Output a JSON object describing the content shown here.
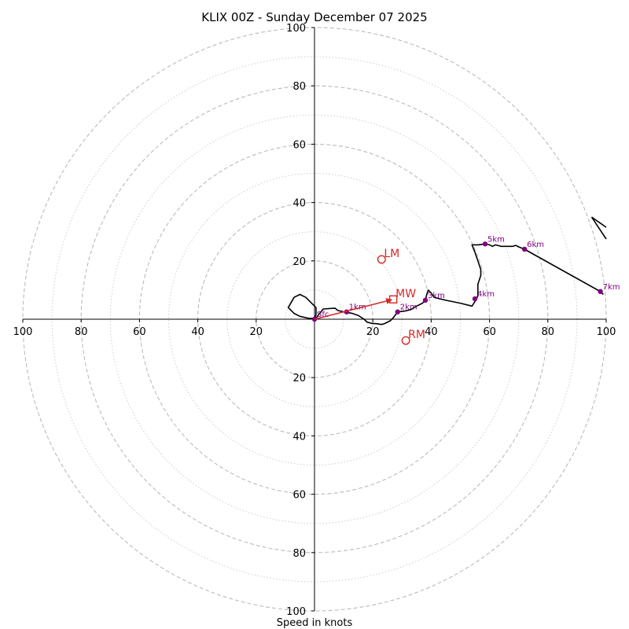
{
  "chart_data": {
    "type": "hodograph",
    "title": "KLIX 00Z - Sunday December 07 2025",
    "xlabel": "Speed in knots",
    "xlim": [
      -100,
      100
    ],
    "ylim": [
      -100,
      100
    ],
    "ring_major_step": 20,
    "ring_minor_step": 10,
    "x_ticks": [
      {
        "value": -100,
        "label": "100"
      },
      {
        "value": -80,
        "label": "80"
      },
      {
        "value": -60,
        "label": "60"
      },
      {
        "value": -40,
        "label": "40"
      },
      {
        "value": -20,
        "label": "20"
      },
      {
        "value": 20,
        "label": "20"
      },
      {
        "value": 40,
        "label": "40"
      },
      {
        "value": 60,
        "label": "60"
      },
      {
        "value": 80,
        "label": "80"
      },
      {
        "value": 100,
        "label": "100"
      }
    ],
    "y_ticks": [
      {
        "value": 100,
        "label": "100"
      },
      {
        "value": 80,
        "label": "80"
      },
      {
        "value": 60,
        "label": "60"
      },
      {
        "value": 40,
        "label": "40"
      },
      {
        "value": 20,
        "label": "20"
      },
      {
        "value": -20,
        "label": "20"
      },
      {
        "value": -40,
        "label": "40"
      },
      {
        "value": -60,
        "label": "60"
      },
      {
        "value": -80,
        "label": "80"
      },
      {
        "value": -100,
        "label": "100"
      }
    ],
    "trace": [
      [
        0,
        0
      ],
      [
        0.5,
        1.5
      ],
      [
        0.5,
        4
      ],
      [
        -1,
        5.5
      ],
      [
        -3,
        7.5
      ],
      [
        -5,
        8.5
      ],
      [
        -7,
        7.5
      ],
      [
        -9,
        4
      ],
      [
        -7,
        2
      ],
      [
        -5,
        1
      ],
      [
        -2,
        0.3
      ],
      [
        0.5,
        0.3
      ],
      [
        1,
        1
      ],
      [
        3,
        3.5
      ],
      [
        7,
        3.8
      ],
      [
        8,
        3
      ],
      [
        10,
        2.5
      ],
      [
        13,
        2
      ],
      [
        15,
        1.3
      ],
      [
        17,
        0
      ],
      [
        18,
        -1
      ],
      [
        20,
        -1.5
      ],
      [
        21,
        -1.5
      ],
      [
        23,
        -1.8
      ],
      [
        24,
        -1.5
      ],
      [
        26,
        -0.5
      ],
      [
        27,
        0.5
      ],
      [
        28.5,
        2.5
      ],
      [
        31,
        2.8
      ],
      [
        33,
        3.3
      ],
      [
        35,
        4.5
      ],
      [
        37,
        5.5
      ],
      [
        38,
        6.5
      ],
      [
        38.5,
        8.5
      ],
      [
        39,
        10
      ],
      [
        40,
        9
      ],
      [
        41,
        7.5
      ],
      [
        45,
        6.5
      ],
      [
        50,
        5.5
      ],
      [
        54,
        4.5
      ],
      [
        55,
        6
      ],
      [
        56,
        8
      ],
      [
        56,
        12
      ],
      [
        57,
        15
      ],
      [
        57,
        17
      ],
      [
        56,
        20
      ],
      [
        55,
        23
      ],
      [
        54,
        25.5
      ],
      [
        56,
        25.5
      ],
      [
        58.5,
        25.8
      ],
      [
        60,
        25.5
      ],
      [
        61,
        25
      ],
      [
        62,
        25.5
      ],
      [
        64,
        25
      ],
      [
        66,
        25
      ],
      [
        68,
        25
      ],
      [
        69,
        25.3
      ],
      [
        70,
        24.8
      ],
      [
        72,
        24
      ],
      [
        98,
        9.5
      ],
      [
        99,
        8.5
      ]
    ],
    "trace_offscale": [
      [
        95,
        35
      ],
      [
        100,
        31.5
      ]
    ],
    "trace_return": [
      [
        100,
        27.5
      ],
      [
        95,
        35
      ]
    ],
    "height_markers": [
      {
        "label": "Sfc",
        "u": 0,
        "v": 0
      },
      {
        "label": "1km",
        "u": 11,
        "v": 2.5
      },
      {
        "label": "2km",
        "u": 28.5,
        "v": 2.5
      },
      {
        "label": "3km",
        "u": 38,
        "v": 6.5
      },
      {
        "label": "4km",
        "u": 55,
        "v": 7
      },
      {
        "label": "5km",
        "u": 58.5,
        "v": 25.8
      },
      {
        "label": "6km",
        "u": 72,
        "v": 24
      },
      {
        "label": "7km",
        "u": 98,
        "v": 9.5
      }
    ],
    "storm_motion": [
      {
        "label": "MW",
        "u": 27,
        "v": 6.8,
        "marker": "square"
      },
      {
        "label": "LM",
        "u": 23,
        "v": 20.5,
        "marker": "circle"
      },
      {
        "label": "RM",
        "u": 31.3,
        "v": -7.3,
        "marker": "circle"
      }
    ],
    "mean_wind_arrow": {
      "from": [
        0,
        0
      ],
      "to": [
        27,
        6.8
      ]
    },
    "colors": {
      "trace": "#000000",
      "marker": "#800080",
      "storm": "#d62728",
      "ring_major": "#bbbbbb",
      "ring_minor": "#cccccc"
    }
  }
}
